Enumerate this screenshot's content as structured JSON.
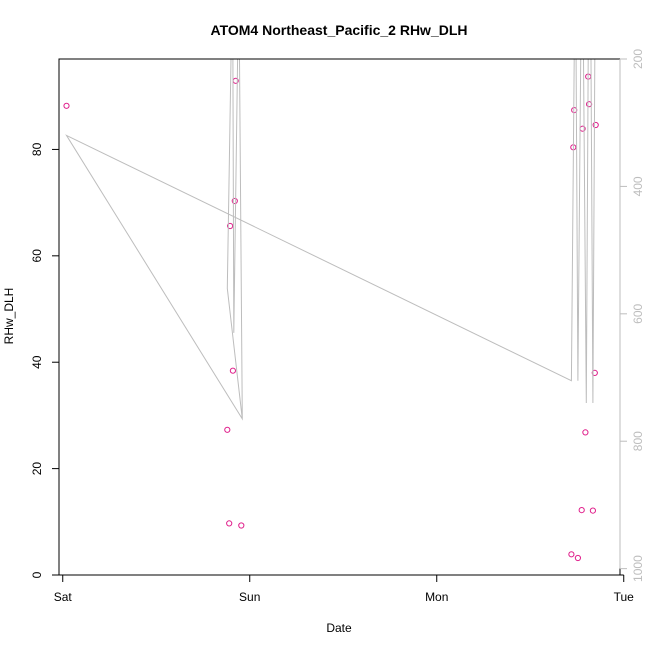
{
  "chart_data": {
    "type": "scatter",
    "title": "ATOM4 Northeast_Pacific_2 RHw_DLH",
    "xlabel": "Date",
    "ylabel": "RHw_DLH",
    "x_axis": {
      "range_days": [
        -0.02,
        2.98
      ],
      "ticks": [
        {
          "label": "Sat",
          "day": 0
        },
        {
          "label": "Sun",
          "day": 1
        },
        {
          "label": "Mon",
          "day": 2
        },
        {
          "label": "Tue",
          "day": 3
        }
      ]
    },
    "y_left": {
      "range": [
        0,
        97
      ],
      "ticks": [
        0,
        20,
        40,
        60,
        80
      ]
    },
    "y_right": {
      "range": [
        1010,
        200
      ],
      "inverted": true,
      "ticks": [
        200,
        400,
        600,
        800,
        1000
      ],
      "color": "#bdbdbd"
    },
    "series": [
      {
        "kind": "points",
        "color": "#e0208c",
        "axis": "left",
        "points": [
          {
            "x": 0.02,
            "y": 88.2
          },
          {
            "x": 0.88,
            "y": 27.3
          },
          {
            "x": 0.89,
            "y": 9.7
          },
          {
            "x": 0.895,
            "y": 65.6
          },
          {
            "x": 0.91,
            "y": 38.4
          },
          {
            "x": 0.92,
            "y": 70.3
          },
          {
            "x": 0.925,
            "y": 92.9
          },
          {
            "x": 0.955,
            "y": 9.3
          },
          {
            "x": 2.72,
            "y": 3.9
          },
          {
            "x": 2.73,
            "y": 80.4
          },
          {
            "x": 2.735,
            "y": 87.4
          },
          {
            "x": 2.755,
            "y": 3.2
          },
          {
            "x": 2.775,
            "y": 12.2
          },
          {
            "x": 2.78,
            "y": 83.9
          },
          {
            "x": 2.795,
            "y": 26.8
          },
          {
            "x": 2.81,
            "y": 93.7
          },
          {
            "x": 2.815,
            "y": 88.5
          },
          {
            "x": 2.835,
            "y": 12.1
          },
          {
            "x": 2.845,
            "y": 38.0
          },
          {
            "x": 2.85,
            "y": 84.6
          }
        ]
      },
      {
        "kind": "line",
        "color": "#bdbdbd",
        "axis": "right",
        "points": [
          {
            "x": 0.02,
            "y": 320
          },
          {
            "x": 0.96,
            "y": 765
          },
          {
            "x": 0.88,
            "y": 560
          },
          {
            "x": 0.9,
            "y": 200
          },
          {
            "x": 0.91,
            "y": 200
          },
          {
            "x": 0.915,
            "y": 630
          },
          {
            "x": 0.935,
            "y": 200
          },
          {
            "x": 0.945,
            "y": 200
          },
          {
            "x": 0.96,
            "y": 765
          },
          {
            "x": 0.02,
            "y": 320
          },
          {
            "x": 2.72,
            "y": 705
          },
          {
            "x": 2.735,
            "y": 200
          },
          {
            "x": 2.745,
            "y": 200
          },
          {
            "x": 2.755,
            "y": 705
          },
          {
            "x": 2.77,
            "y": 200
          },
          {
            "x": 2.785,
            "y": 200
          },
          {
            "x": 2.8,
            "y": 740
          },
          {
            "x": 2.81,
            "y": 200
          },
          {
            "x": 2.825,
            "y": 200
          },
          {
            "x": 2.835,
            "y": 740
          },
          {
            "x": 2.845,
            "y": 200
          }
        ]
      }
    ]
  }
}
